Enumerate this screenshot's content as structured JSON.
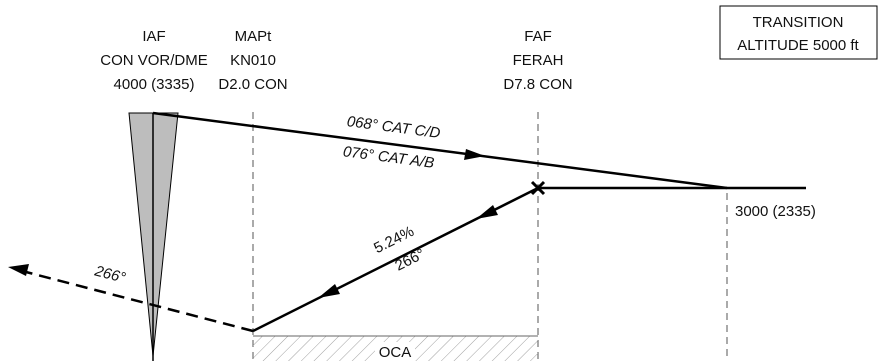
{
  "fixes": {
    "iaf": {
      "line1": "IAF",
      "line2": "CON VOR/DME",
      "line3": "4000 (3335)"
    },
    "mapt": {
      "line1": "MAPt",
      "line2": "KN010",
      "line3": "D2.0 CON"
    },
    "faf": {
      "line1": "FAF",
      "line2": "FERAH",
      "line3": "D7.8 CON"
    }
  },
  "transition_box": {
    "line1": "TRANSITION",
    "line2": "ALTITUDE 5000 ft"
  },
  "tracks": {
    "inbound_cd": "068° CAT C/D",
    "inbound_ab": "076° CAT A/B",
    "final_gradient": "5.24%",
    "final_course": "266°",
    "missed_course": "266°"
  },
  "altitude_3000": "3000 (2335)",
  "oca_label": "OCA",
  "colors": {
    "line": "#000000",
    "cone_fill": "#bdbdbd",
    "hatch": "#9a9a9a",
    "dash": "#666666"
  }
}
